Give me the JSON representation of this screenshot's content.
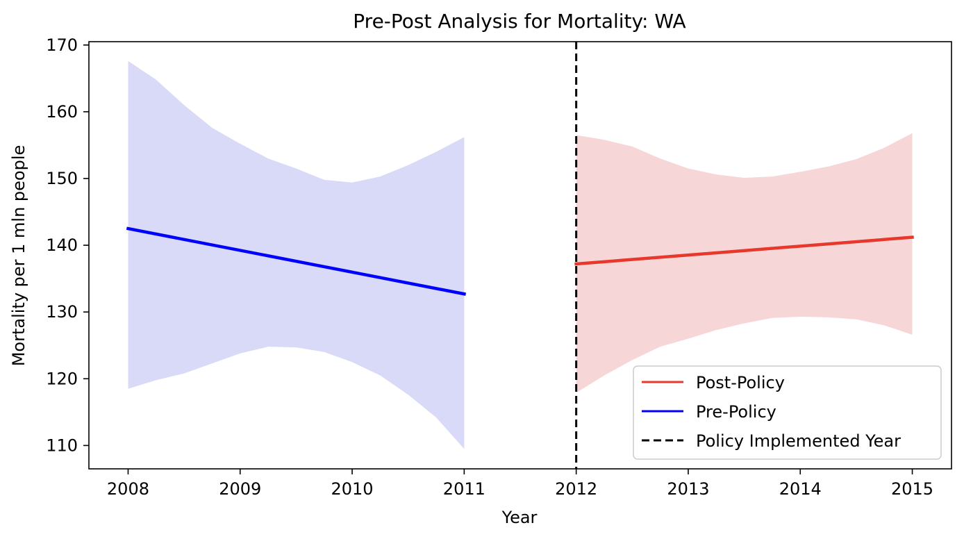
{
  "chart_data": {
    "type": "line",
    "title": "Pre-Post Analysis for Mortality: WA",
    "xlabel": "Year",
    "ylabel": "Mortality per 1 mln people",
    "xlim": [
      2007.65,
      2015.35
    ],
    "ylim": [
      106.5,
      170.5
    ],
    "xticks": [
      2008,
      2009,
      2010,
      2011,
      2012,
      2013,
      2014,
      2015
    ],
    "yticks": [
      110,
      120,
      130,
      140,
      150,
      160,
      170
    ],
    "grid": false,
    "legend_placement": "lower-right",
    "series": [
      {
        "name": "Post-Policy",
        "color": "#e8372b",
        "band_color": "#f7d6d8",
        "x": [
          2012,
          2015
        ],
        "y": [
          137.2,
          141.2
        ],
        "band": {
          "x": [
            2012.0,
            2012.25,
            2012.5,
            2012.75,
            2013.0,
            2013.25,
            2013.5,
            2013.75,
            2014.0,
            2014.25,
            2014.5,
            2014.75,
            2015.0
          ],
          "upper": [
            156.5,
            155.8,
            154.8,
            153.0,
            151.5,
            150.6,
            150.1,
            150.3,
            151.0,
            151.8,
            152.9,
            154.6,
            156.8
          ],
          "lower": [
            117.9,
            120.5,
            122.8,
            124.8,
            126.0,
            127.3,
            128.3,
            129.1,
            129.3,
            129.2,
            128.9,
            128.0,
            126.6
          ]
        }
      },
      {
        "name": "Pre-Policy",
        "color": "#0000ff",
        "band_color": "#d9d9f8",
        "x": [
          2008,
          2011
        ],
        "y": [
          142.5,
          132.7
        ],
        "band": {
          "x": [
            2008.0,
            2008.25,
            2008.5,
            2008.75,
            2009.0,
            2009.25,
            2009.5,
            2009.75,
            2010.0,
            2010.25,
            2010.5,
            2010.75,
            2011.0
          ],
          "upper": [
            167.6,
            164.8,
            161.0,
            157.6,
            155.2,
            153.0,
            151.5,
            149.8,
            149.4,
            150.3,
            152.0,
            154.0,
            156.2
          ],
          "lower": [
            118.5,
            119.8,
            120.8,
            122.3,
            123.8,
            124.8,
            124.7,
            124.0,
            122.5,
            120.5,
            117.6,
            114.2,
            109.5
          ]
        }
      }
    ],
    "vline": {
      "name": "Policy Implemented Year",
      "x": 2012,
      "color": "#000000",
      "style": "dashed"
    },
    "legend": [
      "Post-Policy",
      "Pre-Policy",
      "Policy Implemented Year"
    ]
  }
}
